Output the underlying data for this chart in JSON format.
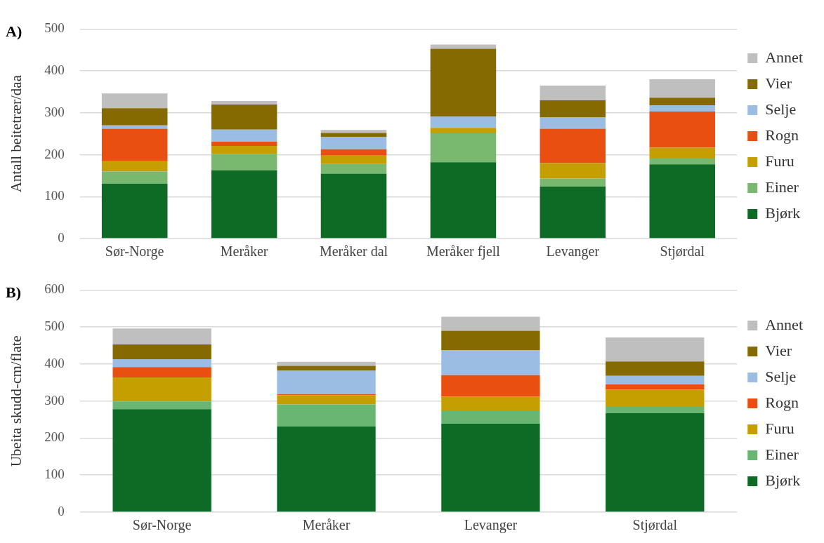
{
  "chart_data": [
    {
      "type": "bar",
      "title": "A)",
      "ylabel": "Antall beitetrær/daa",
      "categories": [
        "Sør-Norge",
        "Meråker",
        "Meråker dal",
        "Meråker fjell",
        "Levanger",
        "Stjørdal"
      ],
      "stacked": true,
      "ylim": [
        0,
        500
      ],
      "yticks": [
        0,
        100,
        200,
        300,
        400,
        500
      ],
      "grid": "y",
      "legend": "right",
      "series": [
        {
          "name": "Bjørk",
          "color": "#0e6b26",
          "values": [
            131,
            163,
            155,
            182,
            124,
            177
          ]
        },
        {
          "name": "Einer",
          "color": "#78b86f",
          "values": [
            29,
            39,
            23,
            69,
            19,
            14
          ]
        },
        {
          "name": "Furu",
          "color": "#c59f00",
          "values": [
            26,
            19,
            20,
            13,
            37,
            26
          ]
        },
        {
          "name": "Rogn",
          "color": "#e84f11",
          "values": [
            76,
            10,
            15,
            0,
            82,
            86
          ]
        },
        {
          "name": "Selje",
          "color": "#9bbde4",
          "values": [
            8,
            29,
            29,
            27,
            27,
            15
          ]
        },
        {
          "name": "Vier",
          "color": "#846a00",
          "values": [
            41,
            60,
            10,
            162,
            41,
            18
          ]
        },
        {
          "name": "Annet",
          "color": "#bfbfbf",
          "values": [
            35,
            8,
            7,
            10,
            35,
            44
          ]
        }
      ]
    },
    {
      "type": "bar",
      "title": "B)",
      "ylabel": "Ubeita skudd-cm/flate",
      "categories": [
        "Sør-Norge",
        "Meråker",
        "Levanger",
        "Stjørdal"
      ],
      "stacked": true,
      "ylim": [
        0,
        600
      ],
      "yticks": [
        0,
        100,
        200,
        300,
        400,
        500,
        600
      ],
      "grid": "y",
      "legend": "right",
      "series": [
        {
          "name": "Bjørk",
          "color": "#0e6b26",
          "values": [
            278,
            231,
            239,
            267
          ]
        },
        {
          "name": "Einer",
          "color": "#69b673",
          "values": [
            21,
            60,
            36,
            19
          ]
        },
        {
          "name": "Furu",
          "color": "#c59f00",
          "values": [
            65,
            25,
            37,
            45
          ]
        },
        {
          "name": "Rogn",
          "color": "#e84f11",
          "values": [
            28,
            3,
            58,
            14
          ]
        },
        {
          "name": "Selje",
          "color": "#9bbde4",
          "values": [
            21,
            63,
            68,
            23
          ]
        },
        {
          "name": "Vier",
          "color": "#846a00",
          "values": [
            40,
            13,
            52,
            39
          ]
        },
        {
          "name": "Annet",
          "color": "#bfbfbf",
          "values": [
            43,
            11,
            38,
            65
          ]
        }
      ]
    }
  ]
}
